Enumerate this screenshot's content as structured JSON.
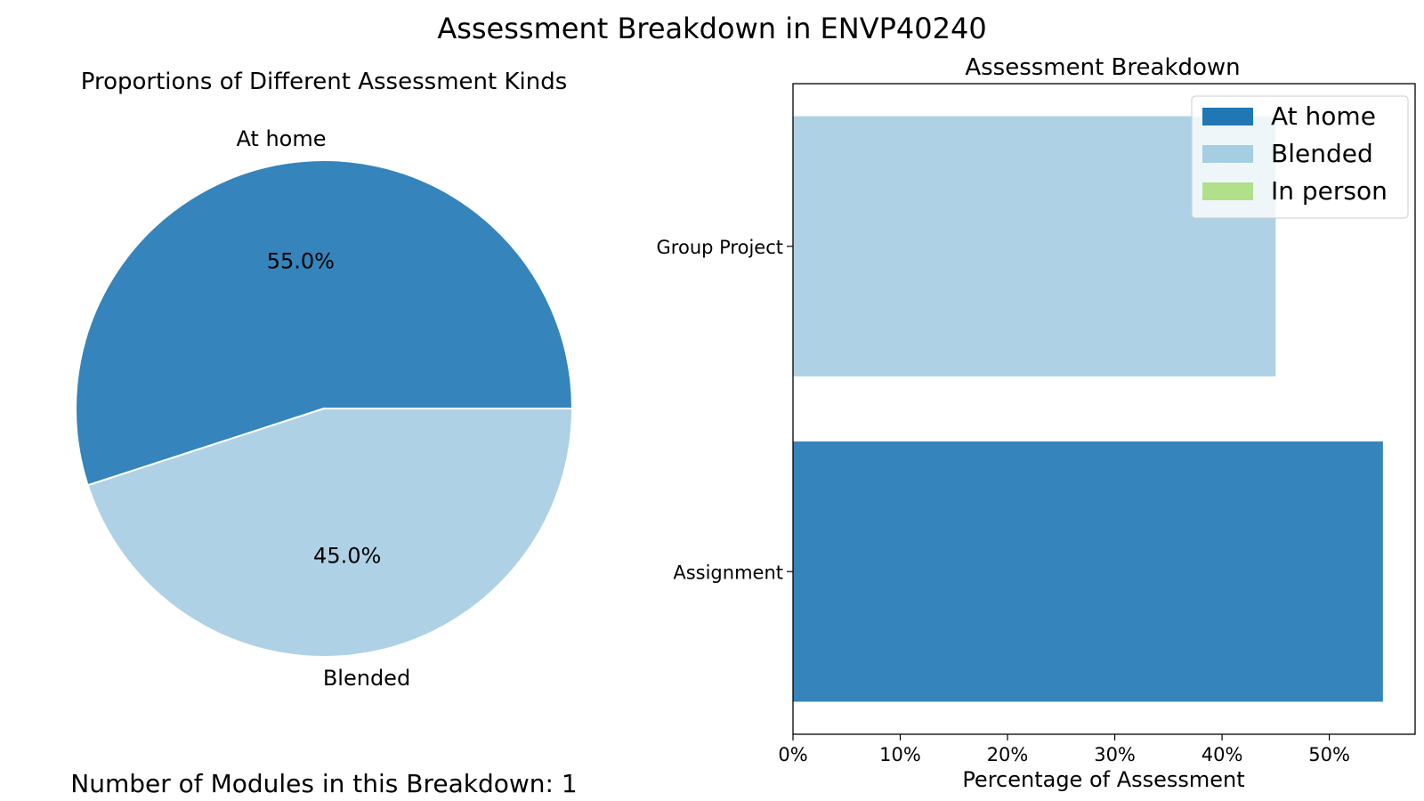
{
  "figure": {
    "suptitle": "Assessment Breakdown in ENVP40240",
    "footer_note": "Number of Modules in this Breakdown: 1"
  },
  "chart_data": [
    {
      "type": "pie",
      "title": "Proportions of Different Assessment Kinds",
      "labels": [
        "At home",
        "Blended"
      ],
      "values": [
        55.0,
        45.0
      ],
      "autopct_labels": [
        "55.0%",
        "45.0%"
      ],
      "colors": [
        "#3584bb",
        "#afd1e5"
      ],
      "start_angle": "0 degrees, counterclockwise"
    },
    {
      "type": "bar",
      "orientation": "horizontal",
      "stacked": true,
      "title": "Assessment Breakdown",
      "xlabel": "Percentage of Assessment",
      "ylabel": "",
      "categories": [
        "Assignment",
        "Group Project"
      ],
      "series": [
        {
          "name": "At home",
          "color": "#3584bb",
          "legend_color": "#1f77b4",
          "values": [
            55,
            0
          ]
        },
        {
          "name": "Blended",
          "color": "#afd1e5",
          "legend_color": "#a6cee3",
          "values": [
            0,
            45
          ]
        },
        {
          "name": "In person",
          "color": "#b2df8a",
          "legend_color": "#b2df8a",
          "values": [
            0,
            0
          ]
        }
      ],
      "xlim": [
        0,
        58
      ],
      "xticks": [
        0,
        10,
        20,
        30,
        40,
        50
      ],
      "xtick_labels": [
        "0%",
        "10%",
        "20%",
        "30%",
        "40%",
        "50%"
      ],
      "legend_placement": "upper right",
      "grid": false
    }
  ]
}
